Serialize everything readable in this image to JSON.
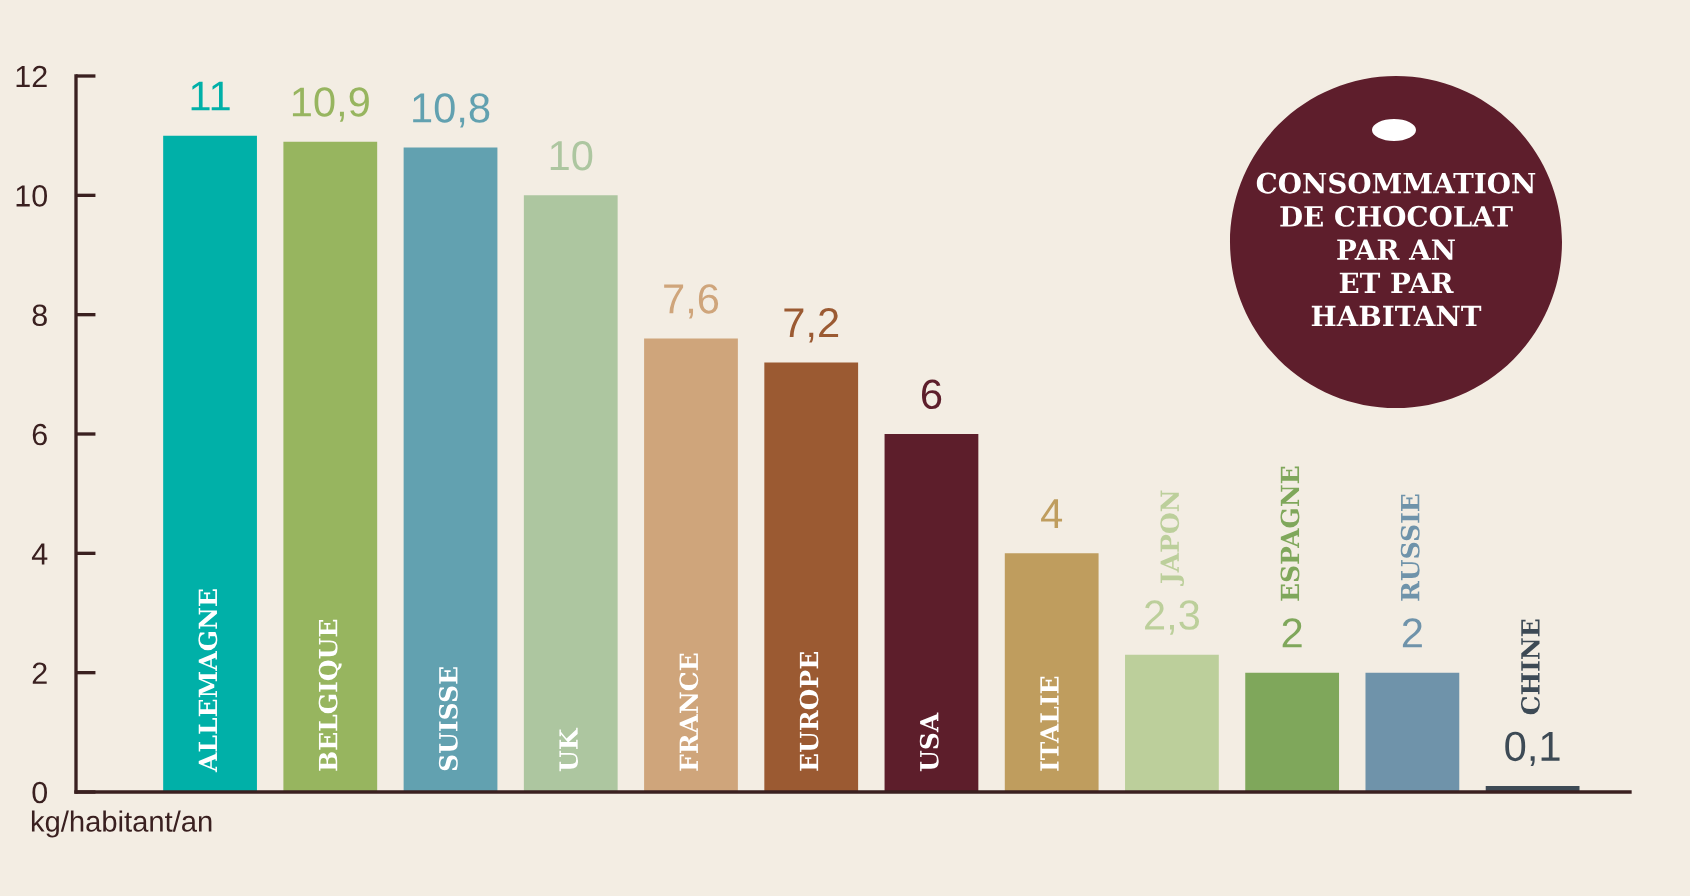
{
  "chart_data": {
    "type": "bar",
    "title": "CONSOMMATION\nDE CHOCOLAT\nPAR AN\nET PAR\nHABITANT",
    "ylabel": "kg/habitant/an",
    "categories": [
      "ALLEMAGNE",
      "BELGIQUE",
      "SUISSE",
      "UK",
      "FRANCE",
      "EUROPE",
      "USA",
      "ITALIE",
      "JAPON",
      "ESPAGNE",
      "RUSSIE",
      "CHINE"
    ],
    "values": [
      11,
      10.9,
      10.8,
      10,
      7.6,
      7.2,
      6,
      4,
      2.3,
      2,
      2,
      0.1
    ],
    "value_labels": [
      "11",
      "10,9",
      "10,8",
      "10",
      "7,6",
      "7,2",
      "6",
      "4",
      "2,3",
      "2",
      "2",
      "0,1"
    ],
    "colors": [
      "#00b0a8",
      "#97b55f",
      "#62a1b0",
      "#adc6a0",
      "#cfa57b",
      "#9b5a32",
      "#5d1e2b",
      "#bf9d5e",
      "#bccf9b",
      "#7fa75b",
      "#6f93aa",
      "#3d4a55"
    ],
    "ylim": [
      0,
      12
    ],
    "yticks": [
      0,
      2,
      4,
      6,
      8,
      10,
      12
    ]
  }
}
